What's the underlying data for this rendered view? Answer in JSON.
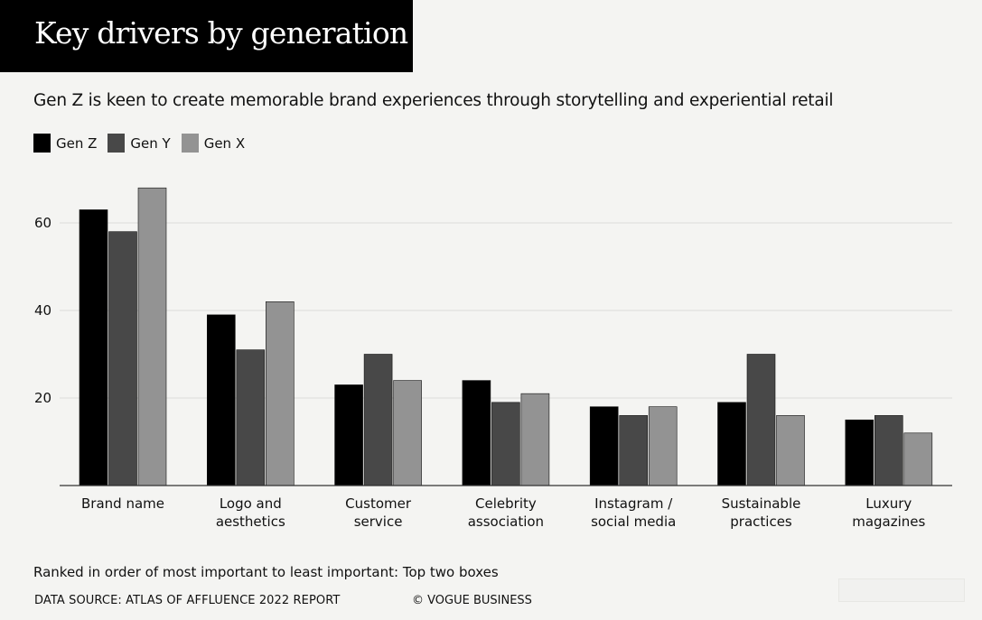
{
  "title": "Key drivers by generation",
  "subtitle": "Gen Z is keen to create memorable brand experiences through storytelling and experiential retail",
  "footnote": "Ranked in order of most important to least important: Top two boxes",
  "source": "DATA SOURCE: ATLAS OF AFFLUENCE 2022 REPORT",
  "copyright": "© VOGUE BUSINESS",
  "colors": {
    "gen_z": "#000000",
    "gen_y": "#484848",
    "gen_x": "#939393",
    "background": "#f4f4f2"
  },
  "chart_data": {
    "type": "bar",
    "categories": [
      [
        "Brand name"
      ],
      [
        "Logo and",
        "aesthetics"
      ],
      [
        "Customer",
        "service"
      ],
      [
        "Celebrity",
        "association"
      ],
      [
        "Instagram /",
        "social media"
      ],
      [
        "Sustainable",
        "practices"
      ],
      [
        "Luxury",
        "magazines"
      ]
    ],
    "series": [
      {
        "name": "Gen Z",
        "color": "#000000",
        "values": [
          63,
          39,
          23,
          24,
          18,
          19,
          15
        ]
      },
      {
        "name": "Gen Y",
        "color": "#484848",
        "values": [
          58,
          31,
          30,
          19,
          16,
          30,
          16
        ]
      },
      {
        "name": "Gen X",
        "color": "#939393",
        "values": [
          68,
          42,
          24,
          21,
          18,
          16,
          12
        ]
      }
    ],
    "yticks": [
      "20",
      "40",
      "60"
    ],
    "ylim": [
      0,
      70
    ],
    "grid": true,
    "legend_position": "top-left"
  }
}
